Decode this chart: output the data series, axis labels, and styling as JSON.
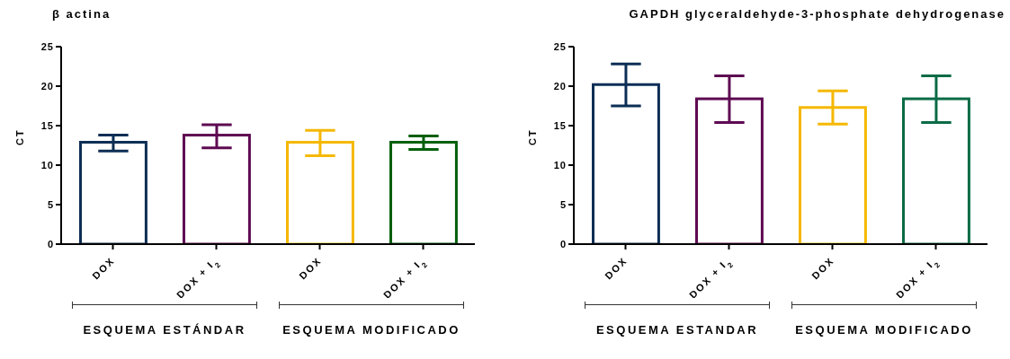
{
  "chart_data": [
    {
      "type": "bar",
      "title": "β actina",
      "ylabel": "CT",
      "categories": [
        "DOX",
        "DOX + I$_{2}$",
        "DOX",
        "DOX + I$_{2}$"
      ],
      "values": [
        12.9,
        13.8,
        12.9,
        12.9
      ],
      "errors": [
        [
          11.8,
          13.8
        ],
        [
          12.2,
          15.1
        ],
        [
          11.2,
          14.4
        ],
        [
          12.0,
          13.7
        ]
      ],
      "colors": [
        "#0d2e55",
        "#5e0a52",
        "#f5b800",
        "#005f0a"
      ],
      "ylim": [
        0,
        25
      ],
      "yticks": [
        0,
        5,
        10,
        15,
        20,
        25
      ],
      "grid": false,
      "legend": false,
      "annotations": [
        "ESQUEMA ESTÁNDAR",
        "ESQUEMA MODIFICADO"
      ]
    },
    {
      "type": "bar",
      "title": "GAPDH glyceraldehyde-3-phosphate dehydrogenase",
      "ylabel": "CT",
      "categories": [
        "DOX",
        "DOX + I$_{2}$",
        "DOX",
        "DOX + I$_{2}$"
      ],
      "values": [
        20.2,
        18.4,
        17.3,
        18.4
      ],
      "errors": [
        [
          17.5,
          22.8
        ],
        [
          15.4,
          21.3
        ],
        [
          15.2,
          19.4
        ],
        [
          15.4,
          21.3
        ]
      ],
      "colors": [
        "#0d2e55",
        "#5e0a52",
        "#f5b800",
        "#0a6b45"
      ],
      "ylim": [
        0,
        25
      ],
      "yticks": [
        0,
        5,
        10,
        15,
        20,
        25
      ],
      "grid": false,
      "legend": false,
      "annotations": [
        "ESQUEMA ESTANDAR",
        "ESQUEMA MODIFICADO"
      ]
    }
  ]
}
